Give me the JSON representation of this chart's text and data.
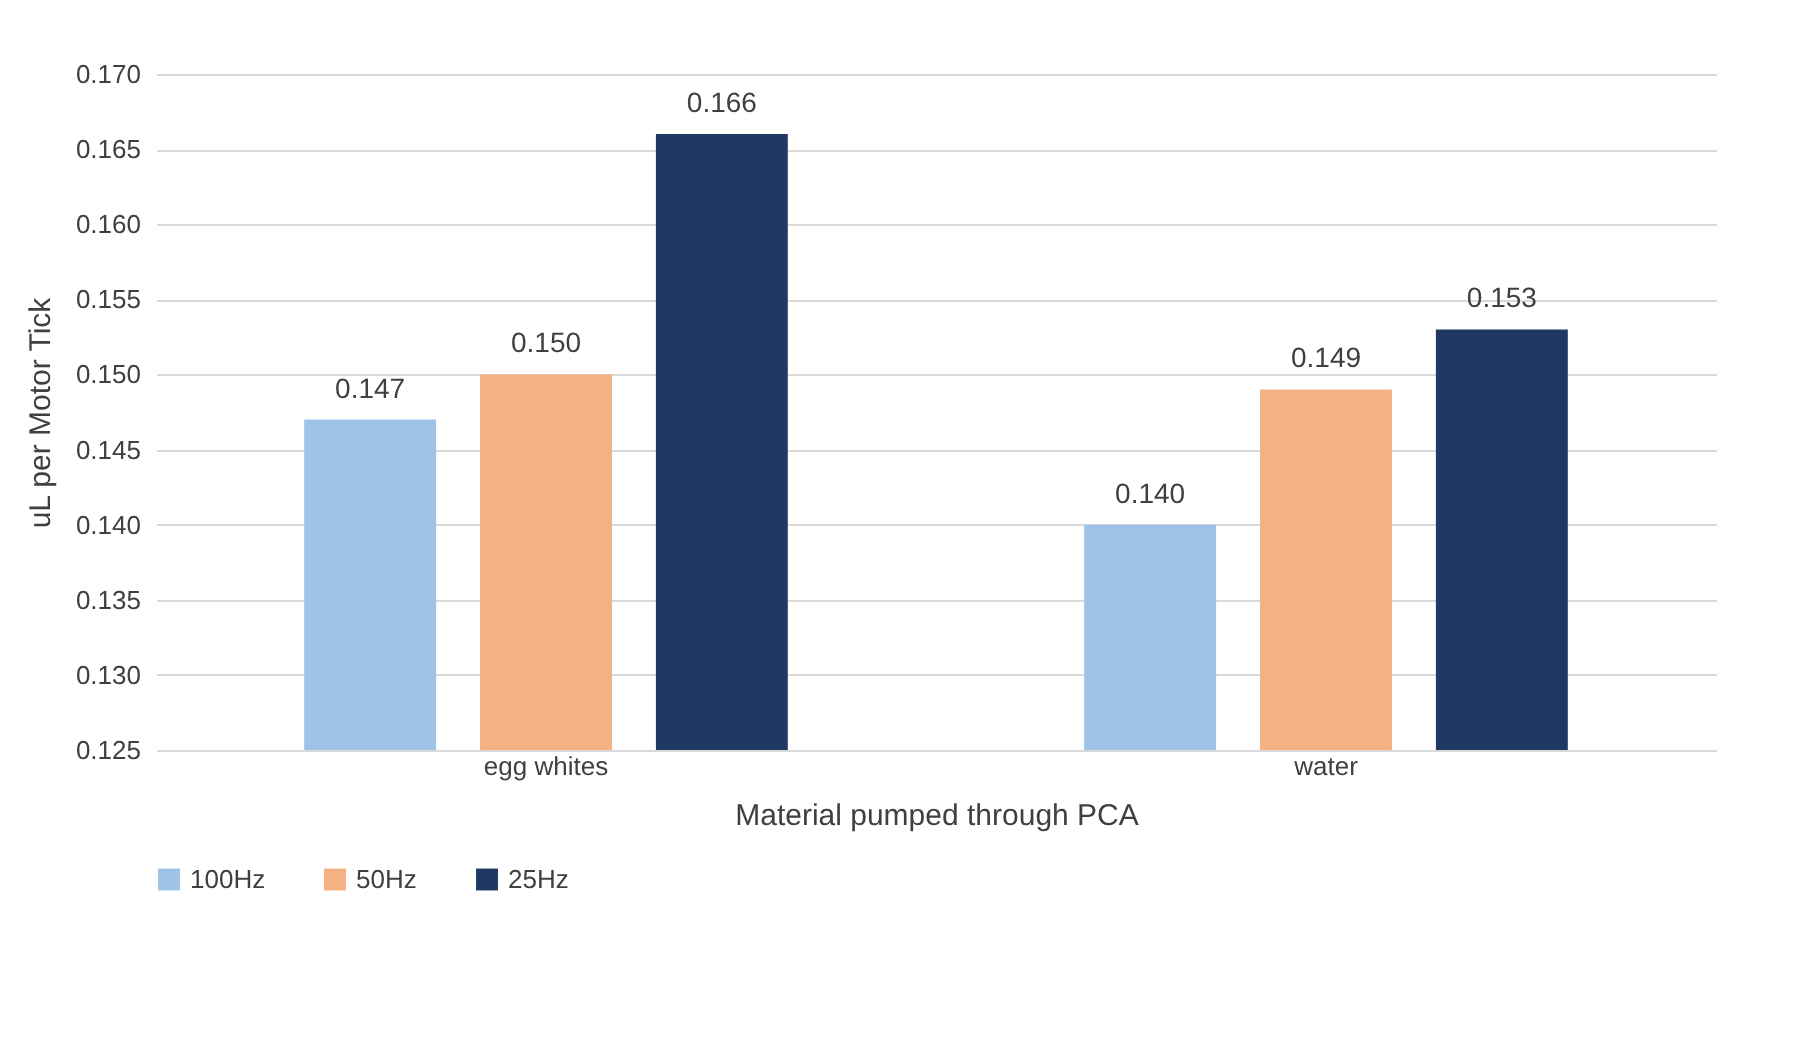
{
  "chart_data": {
    "type": "bar",
    "xlabel": "Material pumped through PCA",
    "ylabel": "uL per Motor Tick",
    "categories": [
      "egg whites",
      "water"
    ],
    "series": [
      {
        "name": "100Hz",
        "color": "#9dc3e6",
        "values": [
          0.147,
          0.14
        ],
        "value_labels": [
          "0.147",
          "0.140"
        ]
      },
      {
        "name": "50Hz",
        "color": "#f4b183",
        "values": [
          0.15,
          0.149
        ],
        "value_labels": [
          "0.150",
          "0.149"
        ]
      },
      {
        "name": "25Hz",
        "color": "#1f3864",
        "values": [
          0.166,
          0.153
        ],
        "value_labels": [
          "0.166",
          "0.153"
        ]
      }
    ],
    "ylim": [
      0.125,
      0.17
    ],
    "yticks": [
      {
        "value": 0.125,
        "label": "0.125"
      },
      {
        "value": 0.13,
        "label": "0.130"
      },
      {
        "value": 0.135,
        "label": "0.135"
      },
      {
        "value": 0.14,
        "label": "0.140"
      },
      {
        "value": 0.145,
        "label": "0.145"
      },
      {
        "value": 0.15,
        "label": "0.150"
      },
      {
        "value": 0.155,
        "label": "0.155"
      },
      {
        "value": 0.16,
        "label": "0.160"
      },
      {
        "value": 0.165,
        "label": "0.165"
      },
      {
        "value": 0.17,
        "label": "0.170"
      }
    ],
    "grid": "y",
    "legend": "bottom"
  }
}
